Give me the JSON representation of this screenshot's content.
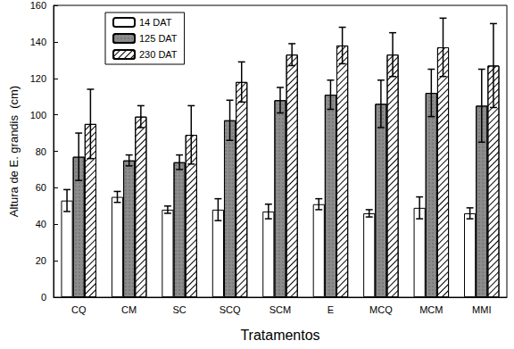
{
  "chart_data": {
    "type": "bar",
    "x_label": "Tratamentos",
    "y_label": "Altura de E. grandis  (cm)",
    "categories": [
      "CQ",
      "CM",
      "SC",
      "SCQ",
      "SCM",
      "E",
      "MCQ",
      "MCM",
      "MMI"
    ],
    "series": [
      {
        "name": "14 DAT",
        "color": "#ffffff",
        "values": [
          53,
          55,
          48,
          48,
          47,
          51,
          46,
          49,
          46
        ],
        "errors": [
          6,
          3,
          2,
          6,
          4,
          3,
          2,
          6,
          3
        ]
      },
      {
        "name": "125 DAT",
        "color": "#8c8c8c",
        "values": [
          77,
          75,
          74,
          97,
          108,
          111,
          106,
          112,
          105
        ],
        "errors": [
          13,
          3,
          4,
          11,
          7,
          8,
          13,
          13,
          20
        ]
      },
      {
        "name": "230 DAT",
        "color": "#ffffff",
        "values": [
          95,
          99,
          89,
          118,
          133,
          138,
          133,
          137,
          127
        ],
        "errors": [
          19,
          6,
          16,
          11,
          6,
          10,
          12,
          16,
          23
        ]
      }
    ],
    "ylim": [
      0,
      160
    ],
    "yticks": [
      0,
      20,
      40,
      60,
      80,
      100,
      120,
      140,
      160
    ],
    "legend": "upper left",
    "grid": false
  }
}
